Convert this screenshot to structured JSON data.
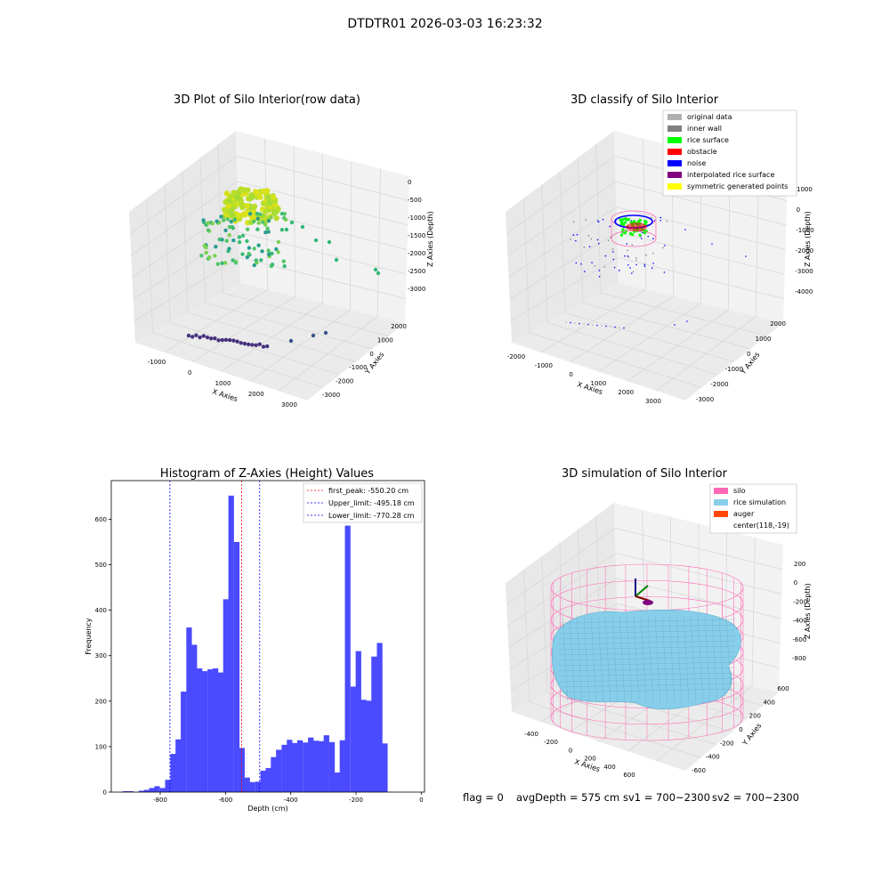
{
  "figure": {
    "suptitle": "DTDTR01 2026-03-03 16:23:32",
    "footer": {
      "flag": "flag = 0",
      "avg_depth": "avgDepth = 575 cm",
      "sv1": "sv1 = 700~2300",
      "sv2": "sv2 = 700~2300"
    }
  },
  "colors": {
    "hist_bar": "#4a4aff",
    "first_peak": "#ff0000",
    "limits": "#0000ff",
    "original": "#b0b0b0",
    "inner_wall": "#808080",
    "rice_surface": "#00ff00",
    "obstacle": "#ff0000",
    "noise": "#0000ff",
    "interp": "#800080",
    "symmetric": "#ffff00",
    "silo": "#ff69b4",
    "rice_sim": "#87ceeb",
    "auger": "#ff4500"
  },
  "chart_data": [
    {
      "type": "scatter",
      "title": "3D Plot of Silo Interior(row data)",
      "xlabel": "X Axies",
      "ylabel": "Y Axies",
      "zlabel": "Z Axies (Depth)",
      "xticks": [
        "-1000",
        "0",
        "1000",
        "2000",
        "3000"
      ],
      "yticks": [
        "-3000",
        "-2000",
        "-1000",
        "0",
        "1000",
        "2000"
      ],
      "zticks": [
        "0",
        "-500",
        "-1000",
        "-1500",
        "-2000",
        "-2500",
        "-3000"
      ],
      "colormap": "viridis (by depth)"
    },
    {
      "type": "scatter",
      "title": "3D classify of Silo Interior",
      "xlabel": "X Axies",
      "ylabel": "Y Axies",
      "zlabel": "Z Axies (Depth)",
      "xticks": [
        "-2000",
        "-1000",
        "0",
        "1000",
        "2000",
        "3000"
      ],
      "yticks": [
        "-3000",
        "-2000",
        "-1000",
        "0",
        "1000",
        "2000"
      ],
      "zticks": [
        "1000",
        "0",
        "-1000",
        "-2000",
        "-3000",
        "-4000"
      ],
      "legend": [
        "original data",
        "inner wall",
        "rice surface",
        "obstacle",
        "noise",
        "interpolated rice surface",
        "symmetric generated points"
      ],
      "legend_position": "top-right"
    },
    {
      "type": "bar",
      "title": "Histogram of Z-Axies (Height) Values",
      "xlabel": "Depth (cm)",
      "ylabel": "Frequency",
      "xlim": [
        -950,
        10
      ],
      "ylim": [
        0,
        685
      ],
      "xticks": [
        "-800",
        "-600",
        "-400",
        "-200",
        "0"
      ],
      "yticks": [
        "0",
        "100",
        "200",
        "300",
        "400",
        "500",
        "600"
      ],
      "bin_width": 16.2,
      "bins": [
        {
          "x": -915,
          "v": 2
        },
        {
          "x": -899,
          "v": 2
        },
        {
          "x": -866,
          "v": 3
        },
        {
          "x": -850,
          "v": 5
        },
        {
          "x": -834,
          "v": 9
        },
        {
          "x": -818,
          "v": 13
        },
        {
          "x": -801,
          "v": 9
        },
        {
          "x": -785,
          "v": 27
        },
        {
          "x": -769,
          "v": 84
        },
        {
          "x": -753,
          "v": 116
        },
        {
          "x": -737,
          "v": 221
        },
        {
          "x": -720,
          "v": 362
        },
        {
          "x": -704,
          "v": 324
        },
        {
          "x": -688,
          "v": 272
        },
        {
          "x": -672,
          "v": 266
        },
        {
          "x": -655,
          "v": 270
        },
        {
          "x": -639,
          "v": 272
        },
        {
          "x": -623,
          "v": 263
        },
        {
          "x": -607,
          "v": 424
        },
        {
          "x": -591,
          "v": 652
        },
        {
          "x": -574,
          "v": 550
        },
        {
          "x": -558,
          "v": 97
        },
        {
          "x": -542,
          "v": 32
        },
        {
          "x": -526,
          "v": 22
        },
        {
          "x": -509,
          "v": 23
        },
        {
          "x": -493,
          "v": 47
        },
        {
          "x": -477,
          "v": 53
        },
        {
          "x": -461,
          "v": 77
        },
        {
          "x": -445,
          "v": 93
        },
        {
          "x": -428,
          "v": 104
        },
        {
          "x": -412,
          "v": 115
        },
        {
          "x": -396,
          "v": 108
        },
        {
          "x": -380,
          "v": 114
        },
        {
          "x": -363,
          "v": 109
        },
        {
          "x": -347,
          "v": 120
        },
        {
          "x": -331,
          "v": 113
        },
        {
          "x": -315,
          "v": 112
        },
        {
          "x": -299,
          "v": 125
        },
        {
          "x": -282,
          "v": 110
        },
        {
          "x": -266,
          "v": 43
        },
        {
          "x": -250,
          "v": 114
        },
        {
          "x": -234,
          "v": 586
        },
        {
          "x": -217,
          "v": 232
        },
        {
          "x": -201,
          "v": 310
        },
        {
          "x": -185,
          "v": 203
        },
        {
          "x": -169,
          "v": 201
        },
        {
          "x": -153,
          "v": 298
        },
        {
          "x": -136,
          "v": 328
        },
        {
          "x": -120,
          "v": 107
        }
      ],
      "vlines": [
        {
          "name": "first_peak: -550.20 cm",
          "x": -550.2,
          "color": "#ff0000"
        },
        {
          "name": "Upper_limit: -495.18 cm",
          "x": -495.18,
          "color": "#0000ff"
        },
        {
          "name": "Lower_limit: -770.28 cm",
          "x": -770.28,
          "color": "#0000ff"
        }
      ],
      "legend_position": "top-right"
    },
    {
      "type": "surface",
      "title": "3D simulation of Silo Interior",
      "xlabel": "X Axies",
      "ylabel": "Y Axies",
      "zlabel": "Z Axies (Depth)",
      "xticks": [
        "-400",
        "-200",
        "0",
        "200",
        "400",
        "600"
      ],
      "yticks": [
        "-600",
        "-400",
        "-200",
        "0",
        "200",
        "400",
        "600"
      ],
      "zticks": [
        "200",
        "0",
        "-200",
        "-400",
        "-600",
        "-800"
      ],
      "legend": [
        "silo",
        "rice simulation",
        "auger",
        "center(118,-19)"
      ],
      "legend_position": "top-right"
    }
  ]
}
